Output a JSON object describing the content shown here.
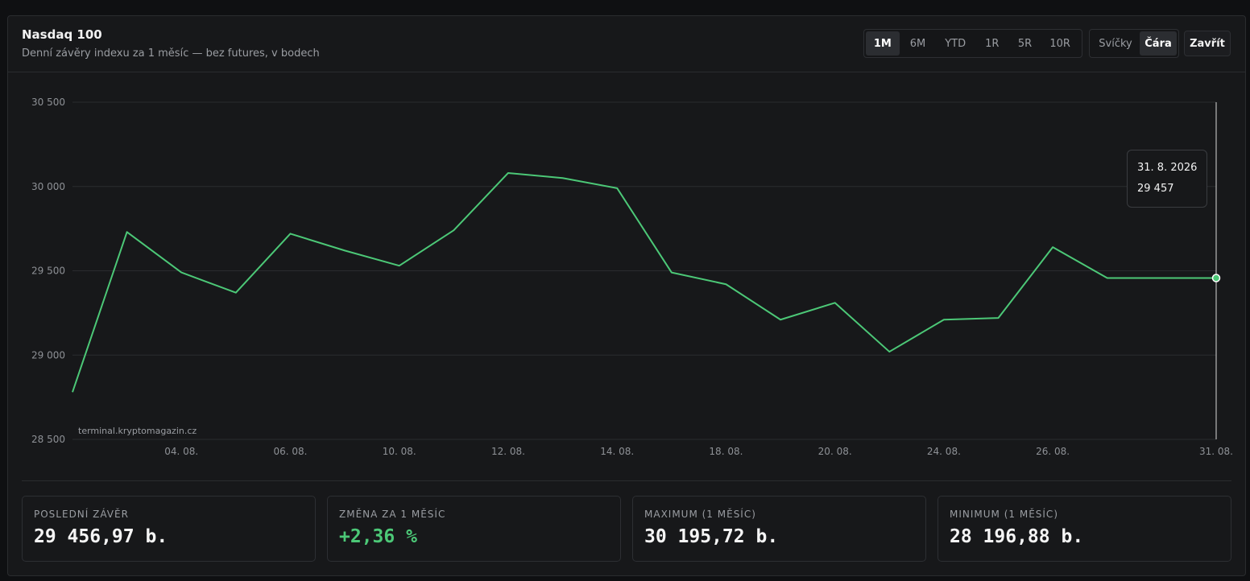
{
  "header": {
    "title": "Nasdaq 100",
    "subtitle": "Denní závěry indexu za 1 měsíc — bez futures, v bodech"
  },
  "range_tabs": [
    {
      "label": "1M",
      "active": true
    },
    {
      "label": "6M",
      "active": false
    },
    {
      "label": "YTD",
      "active": false
    },
    {
      "label": "1R",
      "active": false
    },
    {
      "label": "5R",
      "active": false
    },
    {
      "label": "10R",
      "active": false
    }
  ],
  "view_tabs": [
    {
      "label": "Svíčky",
      "active": false
    },
    {
      "label": "Čára",
      "active": true
    }
  ],
  "close_label": "Zavřít",
  "watermark": "terminal.kryptomagazin.cz",
  "tooltip": {
    "date": "31. 8. 2026",
    "value": "29 457"
  },
  "colors": {
    "line": "#4cc877",
    "positive": "#4cc877",
    "background": "#17181a",
    "grid": "#2a2c2f"
  },
  "chart_data": {
    "type": "line",
    "series": [
      {
        "x": [
          "31. 07.",
          "03. 08.",
          "04. 08.",
          "05. 08.",
          "06. 08.",
          "07. 08.",
          "10. 08.",
          "11. 08.",
          "12. 08.",
          "13. 08.",
          "14. 08.",
          "17. 08.",
          "18. 08.",
          "19. 08.",
          "20. 08.",
          "21. 08.",
          "24. 08.",
          "25. 08.",
          "26. 08.",
          "27. 08.",
          "28. 08.",
          "31. 08."
        ],
        "values": [
          28780,
          29730,
          29490,
          29370,
          29720,
          29620,
          29530,
          29740,
          30080,
          30050,
          29990,
          29490,
          29420,
          29210,
          29310,
          29020,
          29210,
          29220,
          29640,
          29457,
          29457,
          29457
        ]
      }
    ],
    "ylim": [
      28500,
      30500
    ],
    "yticks": [
      {
        "value": 30500,
        "label": "30 500"
      },
      {
        "value": 30000,
        "label": "30 000"
      },
      {
        "value": 29500,
        "label": "29 500"
      },
      {
        "value": 29000,
        "label": "29 000"
      },
      {
        "value": 28500,
        "label": "28 500"
      }
    ],
    "xtick_labels": [
      "04. 08.",
      "06. 08.",
      "10. 08.",
      "12. 08.",
      "14. 08.",
      "18. 08.",
      "20. 08.",
      "24. 08.",
      "26. 08.",
      "31. 08."
    ],
    "grid": true,
    "crosshair_x": "31. 08."
  },
  "stats": [
    {
      "label": "POSLEDNÍ ZÁVĚR",
      "value": "29 456,97 b."
    },
    {
      "label": "ZMĚNA ZA 1 MĚSÍC",
      "value": "+2,36 %"
    },
    {
      "label": "MAXIMUM (1 MĚSÍC)",
      "value": "30 195,72 b."
    },
    {
      "label": "MINIMUM (1 MĚSÍC)",
      "value": "28 196,88 b."
    }
  ]
}
